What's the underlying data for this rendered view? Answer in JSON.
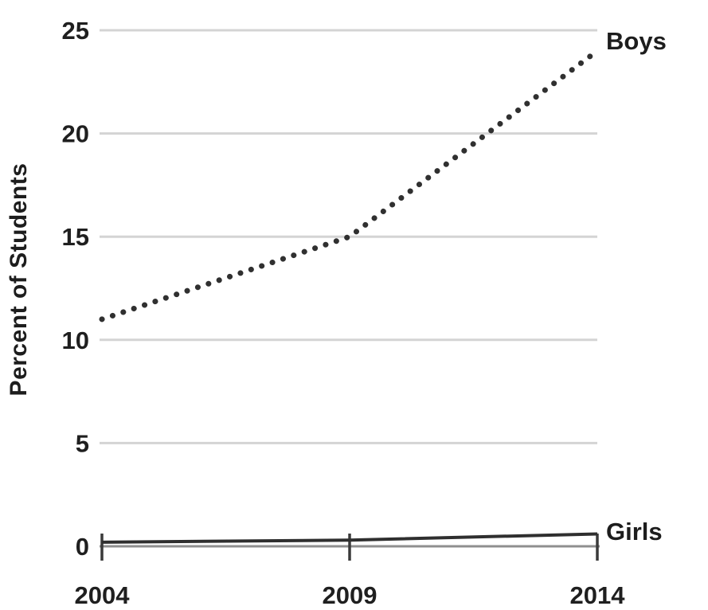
{
  "chart_data": {
    "type": "line",
    "title": "",
    "ylabel": "Percent of Students",
    "xlabel": "",
    "x": [
      "2004",
      "2009",
      "2014"
    ],
    "yticks": [
      0,
      5,
      10,
      15,
      20,
      25
    ],
    "ylim": [
      0,
      25
    ],
    "grid": true,
    "series": [
      {
        "name": "Boys",
        "values": [
          11,
          15,
          24
        ],
        "style": "dotted",
        "color": "#303030"
      },
      {
        "name": "Girls",
        "values": [
          0.2,
          0.3,
          0.6
        ],
        "style": "solid",
        "color": "#2f2f2f"
      }
    ],
    "legend_position": "right-of-line-ends",
    "colors": {
      "gridline": "#d4d4d4",
      "axis_line": "#8f8f8f",
      "tick_mark": "#3a3a3a",
      "text": "#1f1f1f",
      "background": "#ffffff"
    }
  }
}
